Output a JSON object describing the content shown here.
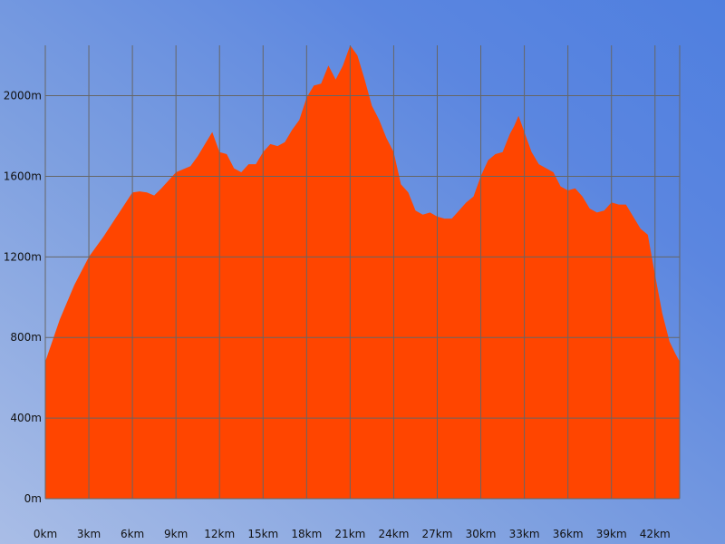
{
  "chart_data": {
    "type": "area",
    "title": "",
    "xlabel": "",
    "ylabel": "",
    "x_unit": "km",
    "y_unit": "m",
    "xlim": [
      0,
      43.7
    ],
    "ylim": [
      0,
      2250
    ],
    "x_ticks": [
      0,
      3,
      6,
      9,
      12,
      15,
      18,
      21,
      24,
      27,
      30,
      33,
      36,
      39,
      42
    ],
    "y_ticks": [
      0,
      400,
      800,
      1200,
      1600,
      2000
    ],
    "grid": true,
    "legend": "none",
    "colors": {
      "fill": "#ff4500",
      "grid": "#666666"
    },
    "x": [
      0,
      1,
      2,
      3,
      4,
      5,
      6,
      6.5,
      7,
      7.5,
      8,
      9,
      10,
      10.5,
      11,
      11.5,
      12,
      12.5,
      13,
      13.5,
      14,
      14.5,
      15,
      15.5,
      16,
      16.5,
      17,
      17.5,
      18,
      18.5,
      19,
      19.5,
      20,
      20.5,
      21,
      21.5,
      22,
      22.5,
      23,
      23.5,
      24,
      24.5,
      25,
      25.5,
      26,
      26.5,
      27,
      27.5,
      28,
      28.5,
      29,
      29.5,
      30,
      30.5,
      31,
      31.5,
      32,
      32.3,
      32.6,
      33,
      33.5,
      34,
      35,
      35.5,
      36,
      36.5,
      37,
      37.5,
      38,
      38.5,
      39,
      39.5,
      40,
      40.5,
      41,
      41.5,
      42,
      42.5,
      43,
      43.4,
      43.7
    ],
    "y": [
      680,
      890,
      1060,
      1200,
      1300,
      1410,
      1520,
      1525,
      1520,
      1505,
      1540,
      1620,
      1650,
      1700,
      1760,
      1820,
      1720,
      1710,
      1640,
      1620,
      1660,
      1660,
      1720,
      1760,
      1750,
      1770,
      1830,
      1880,
      1990,
      2050,
      2060,
      2150,
      2080,
      2150,
      2250,
      2200,
      2080,
      1950,
      1880,
      1790,
      1720,
      1560,
      1520,
      1430,
      1410,
      1420,
      1400,
      1390,
      1390,
      1430,
      1470,
      1500,
      1600,
      1680,
      1710,
      1720,
      1810,
      1850,
      1900,
      1820,
      1720,
      1660,
      1620,
      1550,
      1530,
      1540,
      1500,
      1440,
      1420,
      1430,
      1470,
      1460,
      1460,
      1400,
      1340,
      1310,
      1110,
      920,
      780,
      720,
      680
    ]
  }
}
